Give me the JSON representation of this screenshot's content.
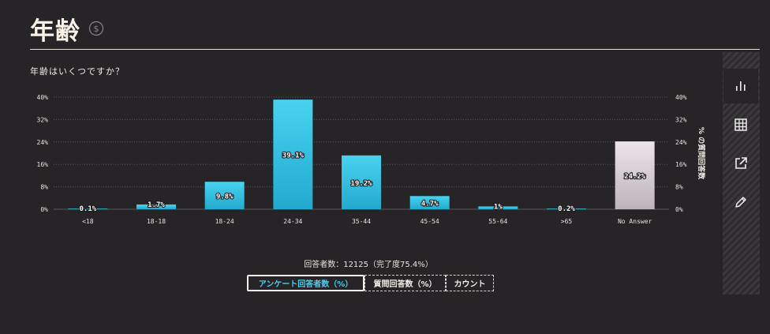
{
  "header": {
    "title": "年齢",
    "icon": "currency-dollar-icon"
  },
  "question": "年齢はいくつですか？",
  "chart_data": {
    "type": "bar",
    "categories": [
      "<18",
      "18-18",
      "18-24",
      "24-34",
      "35-44",
      "45-54",
      "55-64",
      ">65",
      "No Answer"
    ],
    "values": [
      0.1,
      1.7,
      9.8,
      39.1,
      19.2,
      4.7,
      1,
      0.2,
      24.2
    ],
    "data_labels": [
      "0.1%",
      "1.7%",
      "9.8%",
      "39.1%",
      "19.2%",
      "4.7%",
      "1%",
      "0.2%",
      "24.2%"
    ],
    "yticks": [
      "0%",
      "8%",
      "16%",
      "24%",
      "32%",
      "40%"
    ],
    "ylim": [
      0,
      40
    ],
    "right_axis_label": "% の質問回答数",
    "grid": true,
    "colors": {
      "bar": "#37c4e3",
      "no_answer": "#d9d2d6",
      "grid": "#5a585a"
    }
  },
  "side_panel": [
    {
      "name": "bar-chart-icon",
      "active": true
    },
    {
      "name": "table-icon",
      "active": false
    },
    {
      "name": "external-link-icon",
      "active": false
    },
    {
      "name": "pencil-icon",
      "active": false
    }
  ],
  "footer": {
    "respondents": "回答者数：12125（完了度75.4%）",
    "tabs": [
      "アンケート回答者数（%）",
      "質問回答数（%）",
      "カウント"
    ]
  }
}
